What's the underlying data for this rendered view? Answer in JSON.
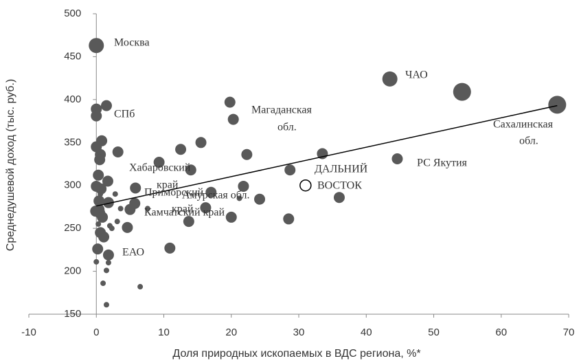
{
  "chart_data": {
    "type": "scatter",
    "xlabel": "Доля природных ископаемых в ВДС региона, %*",
    "ylabel": "Среднедушевой доход (тыс. руб.)",
    "xlim": [
      -10,
      70
    ],
    "xticks": [
      -10,
      0,
      10,
      20,
      30,
      40,
      50,
      60,
      70
    ],
    "ylim": [
      150,
      500
    ],
    "yticks": [
      150,
      200,
      250,
      300,
      350,
      400,
      450,
      500
    ],
    "series": [
      {
        "color": "#595959",
        "x": [
          0,
          43.5,
          54.2,
          68.3,
          0,
          0,
          1.5,
          19.8,
          20.3,
          33.5,
          44.6,
          28.7,
          22.3,
          12.5,
          15.5,
          17,
          16.2,
          14,
          5.8,
          9.3,
          3.2,
          0.8,
          0.6,
          0.5,
          0.3,
          0,
          1.7,
          0.7,
          0,
          -0.1,
          0.5,
          28.5,
          36,
          24.2,
          21.8,
          20,
          13.7,
          1.8,
          0.4,
          0.6,
          1.1,
          0.2,
          10.9,
          1.8,
          4.6,
          5,
          5.7,
          0.4,
          0.9,
          0,
          1,
          1.5,
          1.5,
          1.8,
          6.5,
          3.6,
          2,
          2.3,
          3.1,
          2.8,
          7.6,
          0.3,
          0.6,
          0.6,
          21.2
        ],
        "values": [
          463,
          424,
          409,
          394,
          389,
          381,
          393,
          397,
          377,
          337,
          331,
          318,
          336,
          342,
          350,
          292,
          274,
          318,
          297,
          327,
          339,
          352,
          336,
          330,
          312,
          345,
          305,
          296,
          299,
          270,
          268,
          261,
          286,
          284,
          299,
          263,
          258,
          280,
          272,
          245,
          240,
          226,
          227,
          219,
          251,
          272,
          279,
          282,
          263,
          211,
          186,
          161,
          201,
          210,
          182,
          273,
          253,
          250,
          258,
          290,
          273,
          255,
          290,
          275,
          285
        ],
        "sizes": [
          11,
          11,
          13,
          13,
          8,
          8,
          8,
          8,
          8,
          8,
          8,
          8,
          8,
          8,
          8,
          8,
          8,
          8,
          8,
          8,
          8,
          8,
          8,
          8,
          8,
          8,
          8,
          8,
          8,
          8,
          8,
          8,
          8,
          8,
          8,
          8,
          8,
          8,
          8,
          8,
          8,
          8,
          8,
          8,
          8,
          8,
          8,
          8,
          8,
          4,
          4,
          4,
          4,
          4,
          4,
          4,
          4,
          4,
          4,
          4,
          4,
          4,
          4,
          4,
          4
        ]
      },
      {
        "color": "#000000",
        "hollow": true,
        "x": [
          31
        ],
        "values": [
          300
        ],
        "sizes": [
          8
        ]
      }
    ],
    "trendline": {
      "color": "#000000",
      "x": [
        0,
        68.3
      ],
      "values": [
        276,
        393
      ]
    },
    "annotations": [
      [
        "Москва"
      ],
      [
        "СПб"
      ],
      [
        "Магаданская",
        "обл."
      ],
      [
        "ЧАО"
      ],
      [
        "Сахалинская",
        "обл."
      ],
      [
        "РС Якутия"
      ],
      [
        "ДАЛЬНИЙ",
        "ВОСТОК"
      ],
      [
        "Хабаровский",
        "край"
      ],
      [
        "Приморский",
        "край"
      ],
      [
        "Амурская обл."
      ],
      [
        "Камчатский край"
      ],
      [
        "ЕАО"
      ]
    ]
  }
}
